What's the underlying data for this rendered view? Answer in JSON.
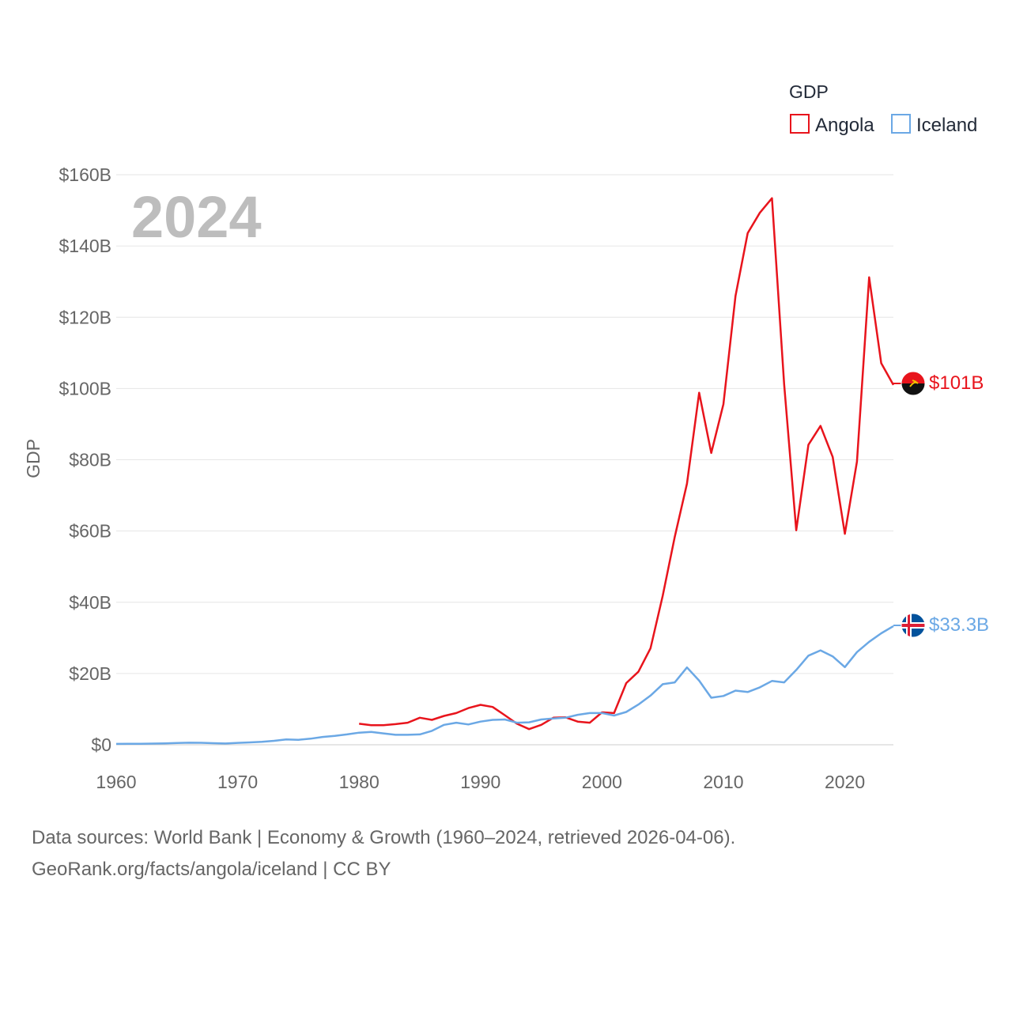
{
  "chart_data": {
    "type": "line",
    "title": "",
    "year_label": "2024",
    "legend_title": "GDP",
    "ylabel": "GDP",
    "xlabel": "",
    "xlim": [
      1960,
      2024
    ],
    "ylim": [
      0,
      160
    ],
    "y_unit": "billion USD",
    "x_ticks": [
      1960,
      1970,
      1980,
      1990,
      2000,
      2010,
      2020
    ],
    "y_ticks": [
      0,
      20,
      40,
      60,
      80,
      100,
      120,
      140,
      160
    ],
    "y_tick_labels": [
      "$0",
      "$20B",
      "$40B",
      "$60B",
      "$80B",
      "$100B",
      "$120B",
      "$140B",
      "$160B"
    ],
    "legend_position": "top-right",
    "series": [
      {
        "name": "Angola",
        "color": "#e8141c",
        "end_label": "$101B",
        "flag": "angola-flag",
        "points": [
          [
            1980,
            5.9
          ],
          [
            1981,
            5.5
          ],
          [
            1982,
            5.5
          ],
          [
            1983,
            5.8
          ],
          [
            1984,
            6.2
          ],
          [
            1985,
            7.6
          ],
          [
            1986,
            7.0
          ],
          [
            1987,
            8.1
          ],
          [
            1988,
            8.9
          ],
          [
            1989,
            10.3
          ],
          [
            1990,
            11.2
          ],
          [
            1991,
            10.6
          ],
          [
            1992,
            8.3
          ],
          [
            1993,
            5.9
          ],
          [
            1994,
            4.4
          ],
          [
            1995,
            5.6
          ],
          [
            1996,
            7.6
          ],
          [
            1997,
            7.7
          ],
          [
            1998,
            6.5
          ],
          [
            1999,
            6.2
          ],
          [
            2000,
            9.1
          ],
          [
            2001,
            8.9
          ],
          [
            2002,
            17.3
          ],
          [
            2003,
            20.5
          ],
          [
            2004,
            27.1
          ],
          [
            2005,
            41.8
          ],
          [
            2006,
            58.4
          ],
          [
            2007,
            73.3
          ],
          [
            2008,
            98.8
          ],
          [
            2009,
            81.9
          ],
          [
            2010,
            95.6
          ],
          [
            2011,
            126.0
          ],
          [
            2012,
            143.6
          ],
          [
            2013,
            149.3
          ],
          [
            2014,
            153.4
          ],
          [
            2015,
            101.2
          ],
          [
            2016,
            60.2
          ],
          [
            2017,
            84.2
          ],
          [
            2018,
            89.5
          ],
          [
            2019,
            80.8
          ],
          [
            2020,
            59.2
          ],
          [
            2021,
            79.5
          ],
          [
            2022,
            131.2
          ],
          [
            2023,
            107.1
          ],
          [
            2024,
            101.0
          ]
        ]
      },
      {
        "name": "Iceland",
        "color": "#6ba8e5",
        "end_label": "$33.3B",
        "flag": "iceland-flag",
        "points": [
          [
            1960,
            0.25
          ],
          [
            1961,
            0.26
          ],
          [
            1962,
            0.29
          ],
          [
            1963,
            0.34
          ],
          [
            1964,
            0.41
          ],
          [
            1965,
            0.48
          ],
          [
            1966,
            0.58
          ],
          [
            1967,
            0.56
          ],
          [
            1968,
            0.45
          ],
          [
            1969,
            0.36
          ],
          [
            1970,
            0.53
          ],
          [
            1971,
            0.67
          ],
          [
            1972,
            0.82
          ],
          [
            1973,
            1.1
          ],
          [
            1974,
            1.5
          ],
          [
            1975,
            1.4
          ],
          [
            1976,
            1.7
          ],
          [
            1977,
            2.2
          ],
          [
            1978,
            2.5
          ],
          [
            1979,
            2.9
          ],
          [
            1980,
            3.4
          ],
          [
            1981,
            3.6
          ],
          [
            1982,
            3.2
          ],
          [
            1983,
            2.8
          ],
          [
            1984,
            2.8
          ],
          [
            1985,
            2.9
          ],
          [
            1986,
            3.9
          ],
          [
            1987,
            5.6
          ],
          [
            1988,
            6.2
          ],
          [
            1989,
            5.7
          ],
          [
            1990,
            6.5
          ],
          [
            1991,
            7.0
          ],
          [
            1992,
            7.1
          ],
          [
            1993,
            6.2
          ],
          [
            1994,
            6.3
          ],
          [
            1995,
            7.1
          ],
          [
            1996,
            7.4
          ],
          [
            1997,
            7.6
          ],
          [
            1998,
            8.4
          ],
          [
            1999,
            8.9
          ],
          [
            2000,
            8.9
          ],
          [
            2001,
            8.2
          ],
          [
            2002,
            9.2
          ],
          [
            2003,
            11.3
          ],
          [
            2004,
            13.8
          ],
          [
            2005,
            17.0
          ],
          [
            2006,
            17.5
          ],
          [
            2007,
            21.7
          ],
          [
            2008,
            18.0
          ],
          [
            2009,
            13.2
          ],
          [
            2010,
            13.7
          ],
          [
            2011,
            15.2
          ],
          [
            2012,
            14.8
          ],
          [
            2013,
            16.1
          ],
          [
            2014,
            17.9
          ],
          [
            2015,
            17.5
          ],
          [
            2016,
            21.0
          ],
          [
            2017,
            25.0
          ],
          [
            2018,
            26.5
          ],
          [
            2019,
            24.8
          ],
          [
            2020,
            21.8
          ],
          [
            2021,
            26.0
          ],
          [
            2022,
            28.9
          ],
          [
            2023,
            31.3
          ],
          [
            2024,
            33.3
          ]
        ]
      }
    ]
  },
  "footer": {
    "line1": "Data sources: World Bank | Economy & Growth (1960–2024, retrieved 2026-04-06).",
    "line2": "GeoRank.org/facts/angola/iceland | CC BY"
  }
}
